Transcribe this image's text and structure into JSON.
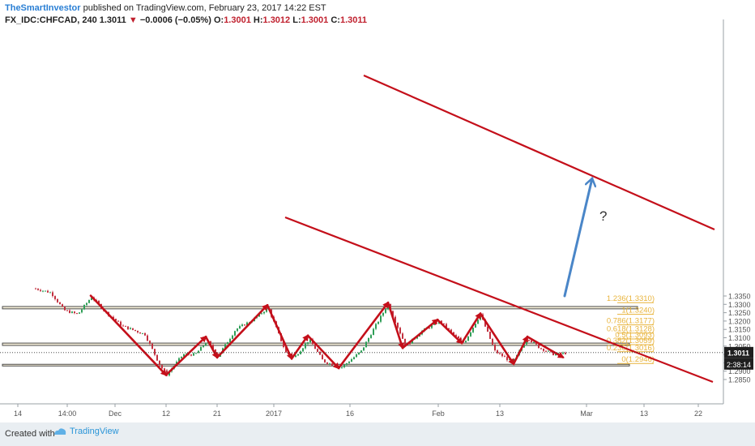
{
  "header": {
    "author": "TheSmartInvestor",
    "published_text": "published on TradingView.com, February 23, 2017 14:22 EST",
    "symbol": "FX_IDC:CHFCAD, 240",
    "last": "1.3011",
    "change": "−0.0006 (−0.05%)",
    "open_label": "O:",
    "open": "1.3001",
    "high_label": "H:",
    "high": "1.3012",
    "low_label": "L:",
    "low": "1.3001",
    "close_label": "C:",
    "close": "1.3011"
  },
  "footer": {
    "created_with": "Created with",
    "brand": "TradingView"
  },
  "colors": {
    "bull": "#2f9e57",
    "bear": "#c2303f",
    "wave": "#c40f1a",
    "projection": "#4a86c8",
    "fib": "#e8b33a",
    "zone": "#f6f0da"
  },
  "chart_data": {
    "type": "candlestick",
    "ylim": [
      1.283,
      1.339
    ],
    "y_ticks": [
      "1.2850",
      "1.2900",
      "1.2950",
      "1.3000",
      "1.3050",
      "1.3100",
      "1.3150",
      "1.3200",
      "1.3250",
      "1.3300",
      "1.3350"
    ],
    "x_ticks": [
      "14",
      "14:00",
      "Dec",
      "12",
      "21",
      "2017",
      "16",
      "Feb",
      "13",
      "Mar",
      "13",
      "22"
    ],
    "price_label": "1.3011",
    "countdown_label": "2:38:14",
    "question_mark": "?",
    "fib_levels": [
      {
        "label": "1.236(1.3310)",
        "value": 1.331
      },
      {
        "label": "1(1.3240)",
        "value": 1.324
      },
      {
        "label": "0.786(1.3177)",
        "value": 1.3177
      },
      {
        "label": "0.618(1.3128)",
        "value": 1.3128
      },
      {
        "label": "0.5(1.3093)",
        "value": 1.3093
      },
      {
        "label": "0.382(1.3059)",
        "value": 1.3059
      },
      {
        "label": "0.236(1.3016)",
        "value": 1.3016
      },
      {
        "label": "0(1.2946)",
        "value": 1.2946
      }
    ],
    "zones": [
      {
        "top": 1.3287,
        "bottom": 1.3273
      },
      {
        "top": 1.3068,
        "bottom": 1.3054
      },
      {
        "top": 1.2941,
        "bottom": 1.2931
      }
    ],
    "wave_points": [
      [
        1.3352,
        1.2877
      ],
      [
        1.2877,
        1.3106
      ],
      [
        1.3106,
        1.2982
      ],
      [
        1.2982,
        1.3295
      ],
      [
        1.3295,
        1.2975
      ],
      [
        1.2975,
        1.3113
      ],
      [
        1.3113,
        1.2918
      ],
      [
        1.2918,
        1.331
      ],
      [
        1.331,
        1.3039
      ],
      [
        1.3039,
        1.3208
      ],
      [
        1.3208,
        1.3068
      ],
      [
        1.3068,
        1.3245
      ],
      [
        1.3245,
        1.2943
      ],
      [
        1.2943,
        1.3106
      ],
      [
        1.3106,
        1.2983
      ]
    ]
  }
}
